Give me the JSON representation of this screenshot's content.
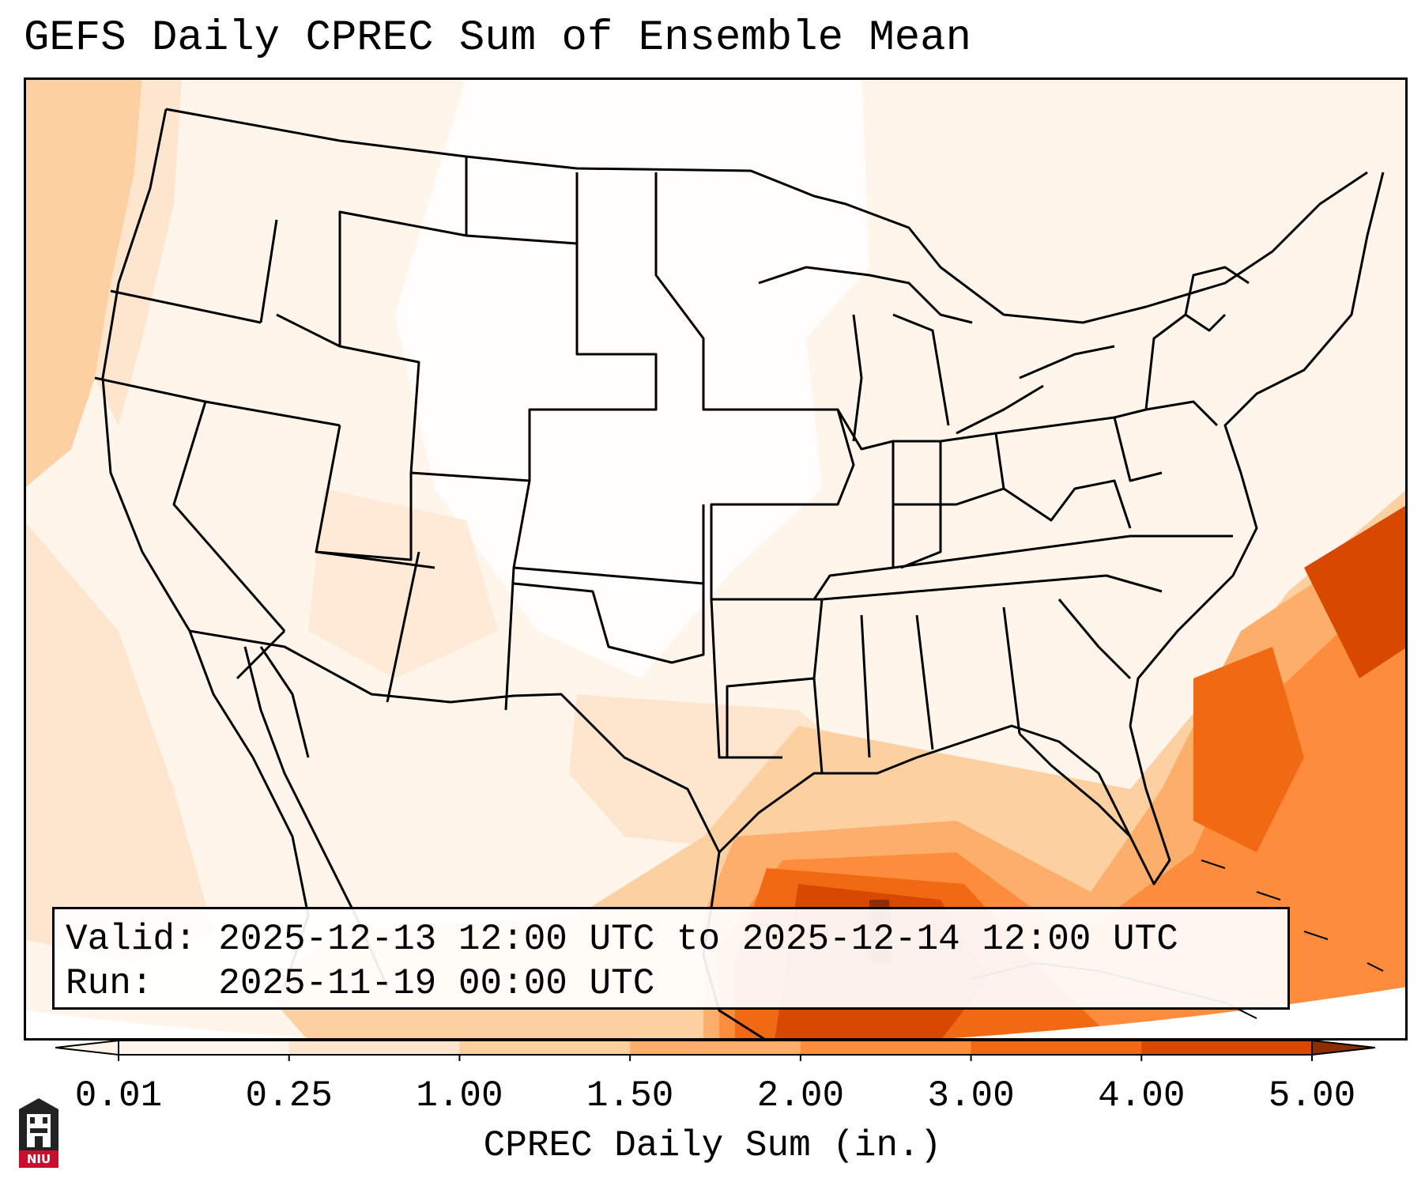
{
  "title": "GEFS Daily CPREC Sum of Ensemble Mean",
  "info": {
    "valid": "Valid: 2025-12-13 12:00 UTC to 2025-12-14 12:00 UTC",
    "run": "Run:   2025-11-19 00:00 UTC"
  },
  "colorbar": {
    "label": "CPREC Daily Sum (in.)",
    "ticks": [
      "0.01",
      "0.25",
      "1.00",
      "1.50",
      "2.00",
      "3.00",
      "4.00",
      "5.00"
    ],
    "colors": [
      "#fff5eb",
      "#fee6ce",
      "#fdd0a2",
      "#fdae6b",
      "#fd8d3c",
      "#f16913",
      "#d94801",
      "#8c2d04"
    ]
  },
  "logo_text": "NIU",
  "icons": {
    "logo": "niu-tower-logo-icon"
  }
}
